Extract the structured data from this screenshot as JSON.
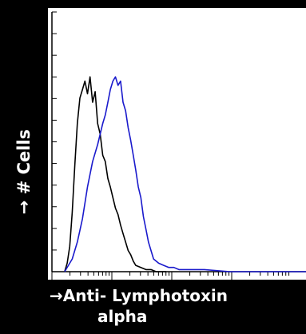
{
  "chart_data": {
    "type": "line",
    "title": "",
    "xlabel": "→Anti- Lymphotoxin alpha",
    "xlabel_lines": [
      "→Anti- Lymphotoxin",
      "alpha"
    ],
    "ylabel": "→ # Cells",
    "ylabel_parts": {
      "arrow": "→",
      "text": "# Cells"
    },
    "x_scale": "log",
    "xlim": [
      0,
      100
    ],
    "ylim": [
      0,
      100
    ],
    "grid": false,
    "legend": "none",
    "series": [
      {
        "color": "#000000",
        "x": [
          5,
          6,
          7,
          8,
          9,
          10,
          11,
          12,
          13,
          14,
          15,
          16,
          17,
          18,
          19,
          20,
          21,
          22,
          23,
          24,
          25,
          26,
          27,
          28,
          29,
          30,
          31,
          32,
          33,
          35,
          37,
          39,
          41,
          43,
          45
        ],
        "values": [
          0,
          4,
          12,
          28,
          50,
          70,
          82,
          86,
          90,
          84,
          92,
          80,
          85,
          70,
          65,
          55,
          52,
          44,
          40,
          35,
          30,
          27,
          22,
          18,
          14,
          10,
          8,
          5,
          3,
          2,
          1,
          1,
          0,
          0,
          0
        ]
      },
      {
        "color": "#1a1acc",
        "x": [
          5,
          8,
          10,
          12,
          14,
          16,
          18,
          20,
          21,
          22,
          23,
          24,
          25,
          26,
          27,
          28,
          29,
          30,
          31,
          32,
          33,
          34,
          35,
          36,
          37,
          38,
          39,
          40,
          42,
          44,
          46,
          48,
          50,
          55,
          60,
          70,
          80,
          100
        ],
        "values": [
          0,
          6,
          14,
          25,
          40,
          52,
          60,
          70,
          74,
          80,
          86,
          90,
          92,
          88,
          90,
          80,
          76,
          68,
          62,
          55,
          48,
          40,
          35,
          26,
          20,
          14,
          10,
          6,
          4,
          3,
          2,
          2,
          1,
          1,
          1,
          0,
          0,
          0
        ]
      }
    ]
  }
}
